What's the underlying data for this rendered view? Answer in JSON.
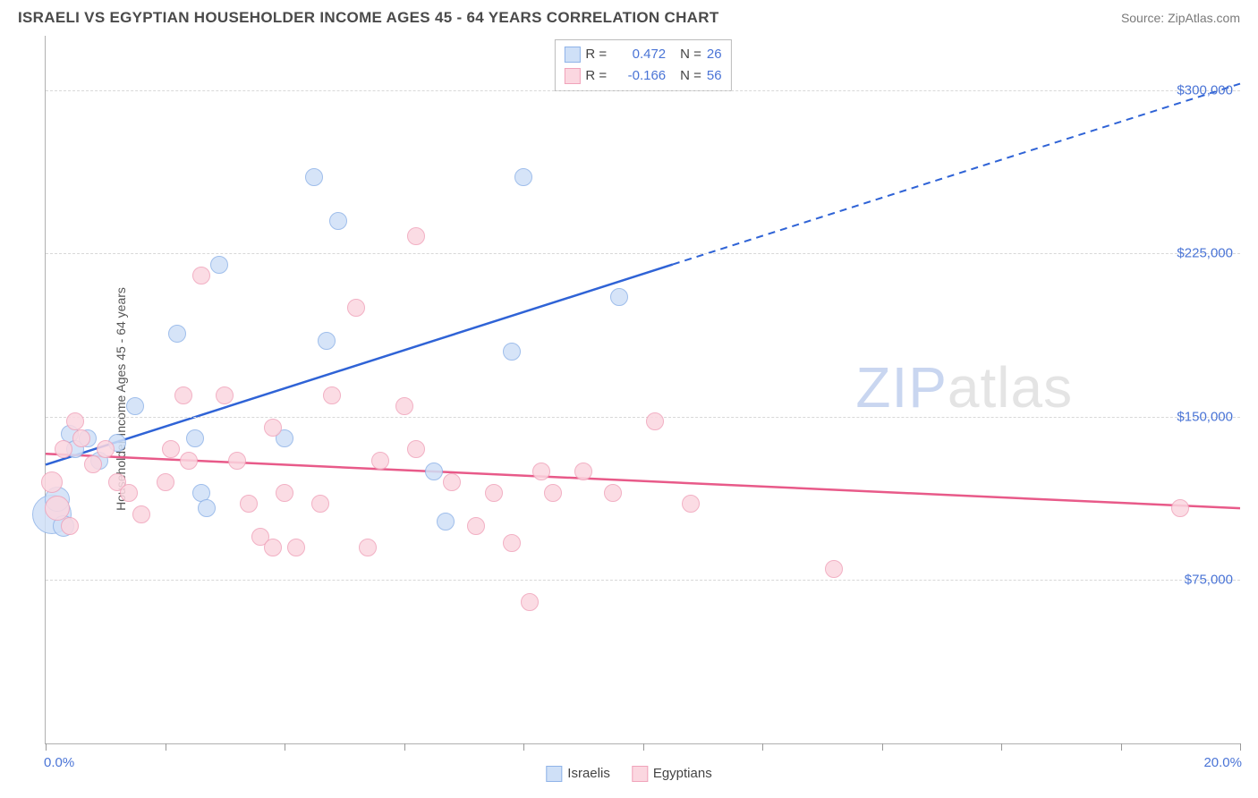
{
  "header": {
    "title": "ISRAELI VS EGYPTIAN HOUSEHOLDER INCOME AGES 45 - 64 YEARS CORRELATION CHART",
    "source": "Source: ZipAtlas.com"
  },
  "chart": {
    "type": "scatter",
    "background_color": "#ffffff",
    "grid_color": "#d8d8d8",
    "axis_color": "#b0b0b0",
    "tick_label_color": "#4a74d6",
    "axis_label_color": "#555555",
    "ylabel": "Householder Income Ages 45 - 64 years",
    "ylabel_fontsize": 14,
    "xlim": [
      0,
      20
    ],
    "ylim": [
      0,
      325000
    ],
    "x_tick_positions": [
      0,
      2,
      4,
      6,
      8,
      10,
      12,
      14,
      16,
      18,
      20
    ],
    "x_min_label": "0.0%",
    "x_max_label": "20.0%",
    "y_ticks": [
      {
        "v": 75000,
        "label": "$75,000"
      },
      {
        "v": 150000,
        "label": "$150,000"
      },
      {
        "v": 225000,
        "label": "$225,000"
      },
      {
        "v": 300000,
        "label": "$300,000"
      }
    ],
    "series": [
      {
        "name": "Israelis",
        "fill": "#cfe0f7",
        "stroke": "#8fb3e8",
        "trend_stroke": "#2f63d6",
        "trend": {
          "x1": 0,
          "y1": 128000,
          "x2_solid": 10.5,
          "y2_solid": 220000,
          "x2_dash": 20,
          "y2_dash": 303000
        },
        "R": "0.472",
        "N": "26",
        "points": [
          {
            "x": 0.1,
            "y": 105000,
            "r": 22
          },
          {
            "x": 0.2,
            "y": 112000,
            "r": 14
          },
          {
            "x": 0.3,
            "y": 100000,
            "r": 12
          },
          {
            "x": 0.4,
            "y": 142000,
            "r": 10
          },
          {
            "x": 0.5,
            "y": 135000,
            "r": 10
          },
          {
            "x": 0.7,
            "y": 140000,
            "r": 10
          },
          {
            "x": 0.9,
            "y": 130000,
            "r": 10
          },
          {
            "x": 1.2,
            "y": 138000,
            "r": 10
          },
          {
            "x": 1.5,
            "y": 155000,
            "r": 10
          },
          {
            "x": 2.2,
            "y": 188000,
            "r": 10
          },
          {
            "x": 2.5,
            "y": 140000,
            "r": 10
          },
          {
            "x": 2.6,
            "y": 115000,
            "r": 10
          },
          {
            "x": 2.7,
            "y": 108000,
            "r": 10
          },
          {
            "x": 2.9,
            "y": 220000,
            "r": 10
          },
          {
            "x": 4.0,
            "y": 140000,
            "r": 10
          },
          {
            "x": 4.5,
            "y": 260000,
            "r": 10
          },
          {
            "x": 4.7,
            "y": 185000,
            "r": 10
          },
          {
            "x": 4.9,
            "y": 240000,
            "r": 10
          },
          {
            "x": 6.5,
            "y": 125000,
            "r": 10
          },
          {
            "x": 6.7,
            "y": 102000,
            "r": 10
          },
          {
            "x": 7.8,
            "y": 180000,
            "r": 10
          },
          {
            "x": 8.0,
            "y": 260000,
            "r": 10
          },
          {
            "x": 9.6,
            "y": 205000,
            "r": 10
          }
        ]
      },
      {
        "name": "Egyptians",
        "fill": "#fbd7e0",
        "stroke": "#f0a3ba",
        "trend_stroke": "#e85a89",
        "trend": {
          "x1": 0,
          "y1": 133000,
          "x2_solid": 20,
          "y2_solid": 108000,
          "x2_dash": 20,
          "y2_dash": 108000
        },
        "R": "-0.166",
        "N": "56",
        "points": [
          {
            "x": 0.1,
            "y": 120000,
            "r": 12
          },
          {
            "x": 0.2,
            "y": 108000,
            "r": 14
          },
          {
            "x": 0.3,
            "y": 135000,
            "r": 10
          },
          {
            "x": 0.4,
            "y": 100000,
            "r": 10
          },
          {
            "x": 0.5,
            "y": 148000,
            "r": 10
          },
          {
            "x": 0.6,
            "y": 140000,
            "r": 10
          },
          {
            "x": 0.8,
            "y": 128000,
            "r": 10
          },
          {
            "x": 1.0,
            "y": 135000,
            "r": 10
          },
          {
            "x": 1.2,
            "y": 120000,
            "r": 10
          },
          {
            "x": 1.4,
            "y": 115000,
            "r": 10
          },
          {
            "x": 1.6,
            "y": 105000,
            "r": 10
          },
          {
            "x": 2.0,
            "y": 120000,
            "r": 10
          },
          {
            "x": 2.1,
            "y": 135000,
            "r": 10
          },
          {
            "x": 2.3,
            "y": 160000,
            "r": 10
          },
          {
            "x": 2.4,
            "y": 130000,
            "r": 10
          },
          {
            "x": 2.6,
            "y": 215000,
            "r": 10
          },
          {
            "x": 3.0,
            "y": 160000,
            "r": 10
          },
          {
            "x": 3.2,
            "y": 130000,
            "r": 10
          },
          {
            "x": 3.4,
            "y": 110000,
            "r": 10
          },
          {
            "x": 3.6,
            "y": 95000,
            "r": 10
          },
          {
            "x": 3.8,
            "y": 145000,
            "r": 10
          },
          {
            "x": 3.8,
            "y": 90000,
            "r": 10
          },
          {
            "x": 4.0,
            "y": 115000,
            "r": 10
          },
          {
            "x": 4.2,
            "y": 90000,
            "r": 10
          },
          {
            "x": 4.6,
            "y": 110000,
            "r": 10
          },
          {
            "x": 4.8,
            "y": 160000,
            "r": 10
          },
          {
            "x": 5.2,
            "y": 200000,
            "r": 10
          },
          {
            "x": 5.4,
            "y": 90000,
            "r": 10
          },
          {
            "x": 5.6,
            "y": 130000,
            "r": 10
          },
          {
            "x": 6.0,
            "y": 155000,
            "r": 10
          },
          {
            "x": 6.2,
            "y": 233000,
            "r": 10
          },
          {
            "x": 6.2,
            "y": 135000,
            "r": 10
          },
          {
            "x": 6.8,
            "y": 120000,
            "r": 10
          },
          {
            "x": 7.2,
            "y": 100000,
            "r": 10
          },
          {
            "x": 7.5,
            "y": 115000,
            "r": 10
          },
          {
            "x": 7.8,
            "y": 92000,
            "r": 10
          },
          {
            "x": 8.1,
            "y": 65000,
            "r": 10
          },
          {
            "x": 8.3,
            "y": 125000,
            "r": 10
          },
          {
            "x": 8.5,
            "y": 115000,
            "r": 10
          },
          {
            "x": 9.0,
            "y": 125000,
            "r": 10
          },
          {
            "x": 9.5,
            "y": 115000,
            "r": 10
          },
          {
            "x": 10.2,
            "y": 148000,
            "r": 10
          },
          {
            "x": 10.8,
            "y": 110000,
            "r": 10
          },
          {
            "x": 13.2,
            "y": 80000,
            "r": 10
          },
          {
            "x": 19.0,
            "y": 108000,
            "r": 10
          }
        ]
      }
    ],
    "legend_top": {
      "R_label": "R =",
      "N_label": "N ="
    },
    "legend_bottom": [
      {
        "label": "Israelis",
        "fill": "#cfe0f7",
        "stroke": "#8fb3e8"
      },
      {
        "label": "Egyptians",
        "fill": "#fbd7e0",
        "stroke": "#f0a3ba"
      }
    ],
    "watermark": {
      "part1": "ZIP",
      "part2": "atlas"
    }
  }
}
